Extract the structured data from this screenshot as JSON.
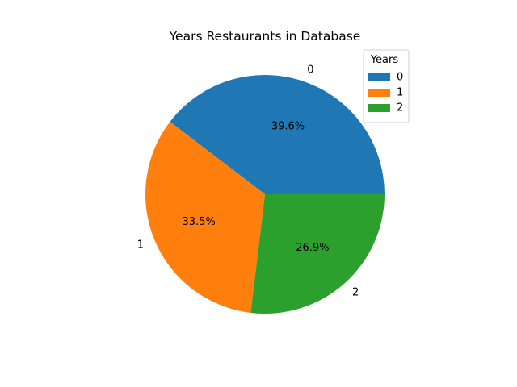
{
  "chart_data": {
    "type": "pie",
    "title": "Years Restaurants in Database",
    "categories": [
      "0",
      "1",
      "2"
    ],
    "values": [
      39.6,
      33.5,
      26.9
    ],
    "percent_labels": [
      "39.6%",
      "33.5%",
      "26.9%"
    ],
    "colors": [
      "#1f77b4",
      "#ff7f0e",
      "#2ca02c"
    ],
    "legend": {
      "title": "Years",
      "placement": "top-right",
      "entries": [
        "0",
        "1",
        "2"
      ]
    }
  }
}
